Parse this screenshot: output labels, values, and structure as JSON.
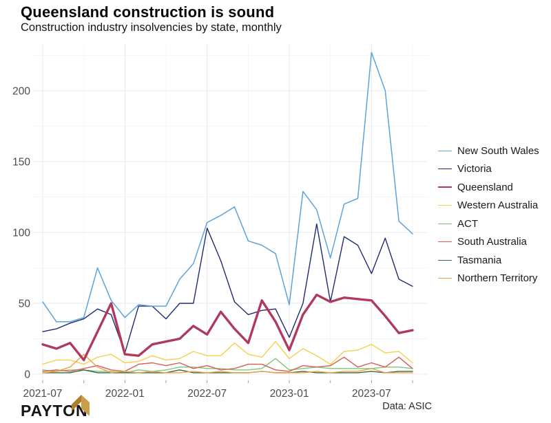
{
  "footer": {
    "source": "Data: ASIC",
    "brand": "PAYTON"
  },
  "chart_data": {
    "type": "line",
    "title": "Queensland construction is sound",
    "subtitle": "Construction industry insolvencies by state, monthly",
    "xlabel": "",
    "ylabel": "",
    "x": [
      "2021-07",
      "2021-08",
      "2021-09",
      "2021-10",
      "2021-11",
      "2021-12",
      "2022-01",
      "2022-02",
      "2022-03",
      "2022-04",
      "2022-05",
      "2022-06",
      "2022-07",
      "2022-08",
      "2022-09",
      "2022-10",
      "2022-11",
      "2022-12",
      "2023-01",
      "2023-02",
      "2023-03",
      "2023-04",
      "2023-05",
      "2023-06",
      "2023-07",
      "2023-08",
      "2023-09",
      "2023-10"
    ],
    "y_ticks": [
      0,
      50,
      100,
      150,
      200
    ],
    "y_minor_ticks": [
      25,
      75,
      125,
      175,
      225
    ],
    "x_major_idx": [
      0,
      6,
      12,
      18,
      24
    ],
    "x_minor_idx": [
      3,
      9,
      15,
      21,
      27
    ],
    "ylim": [
      -5,
      234
    ],
    "grid": "major+minor",
    "legend_position": "right",
    "series": [
      {
        "name": "New South Wales",
        "color": "#5ba3dc",
        "line_width": 1.5,
        "values": [
          51,
          37,
          37,
          40,
          75,
          52,
          40,
          49,
          48,
          48,
          67,
          78,
          107,
          112,
          118,
          94,
          91,
          85,
          49,
          129,
          116,
          82,
          120,
          124,
          227,
          200,
          108,
          99
        ]
      },
      {
        "name": "Victoria",
        "color": "#1f2a6e",
        "line_width": 1.4,
        "values": [
          30,
          32,
          36,
          39,
          46,
          42,
          15,
          48,
          48,
          39,
          50,
          50,
          103,
          80,
          51,
          42,
          45,
          46,
          26,
          50,
          106,
          51,
          97,
          91,
          71,
          96,
          67,
          62
        ]
      },
      {
        "name": "Queensland",
        "color": "#af3a5e",
        "line_width": 3.4,
        "values": [
          21,
          18,
          22,
          10,
          30,
          50,
          14,
          13,
          21,
          23,
          25,
          34,
          28,
          44,
          32,
          22,
          52,
          37,
          17,
          42,
          56,
          51,
          54,
          53,
          52,
          41,
          29,
          31
        ]
      },
      {
        "name": "Western Australia",
        "color": "#f4d04e",
        "line_width": 1.4,
        "values": [
          7,
          10,
          10,
          7,
          12,
          14,
          8,
          9,
          13,
          10,
          11,
          16,
          13,
          13,
          22,
          14,
          12,
          23,
          11,
          18,
          13,
          7,
          16,
          17,
          21,
          15,
          16,
          8
        ]
      },
      {
        "name": "ACT",
        "color": "#7cc57e",
        "line_width": 1.4,
        "values": [
          3,
          2,
          3,
          3,
          2,
          2,
          1,
          3,
          2,
          3,
          5,
          5,
          4,
          4,
          3,
          3,
          4,
          11,
          3,
          4,
          5,
          4,
          4,
          4,
          4,
          5,
          5,
          4
        ]
      },
      {
        "name": "South Australia",
        "color": "#d95b52",
        "line_width": 1.4,
        "values": [
          2,
          3,
          2,
          4,
          6,
          3,
          2,
          7,
          8,
          6,
          8,
          4,
          6,
          3,
          4,
          7,
          7,
          3,
          2,
          6,
          5,
          6,
          12,
          5,
          8,
          5,
          12,
          4
        ]
      },
      {
        "name": "Tasmania",
        "color": "#35693c",
        "line_width": 1.4,
        "values": [
          1,
          1,
          1,
          3,
          1,
          1,
          1,
          1,
          1,
          1,
          3,
          1,
          1,
          1,
          1,
          1,
          2,
          1,
          1,
          2,
          1,
          1,
          1,
          1,
          2,
          1,
          2,
          2
        ]
      },
      {
        "name": "Northern Territory",
        "color": "#eca342",
        "line_width": 1.4,
        "values": [
          1,
          2,
          5,
          14,
          5,
          1,
          2,
          1,
          2,
          1,
          1,
          2,
          1,
          2,
          1,
          1,
          2,
          1,
          1,
          1,
          2,
          1,
          2,
          2,
          4,
          1,
          1,
          1
        ]
      }
    ]
  },
  "logo_colors": {
    "mark_dark": "#ab7f2e",
    "mark_light": "#c99e48"
  }
}
